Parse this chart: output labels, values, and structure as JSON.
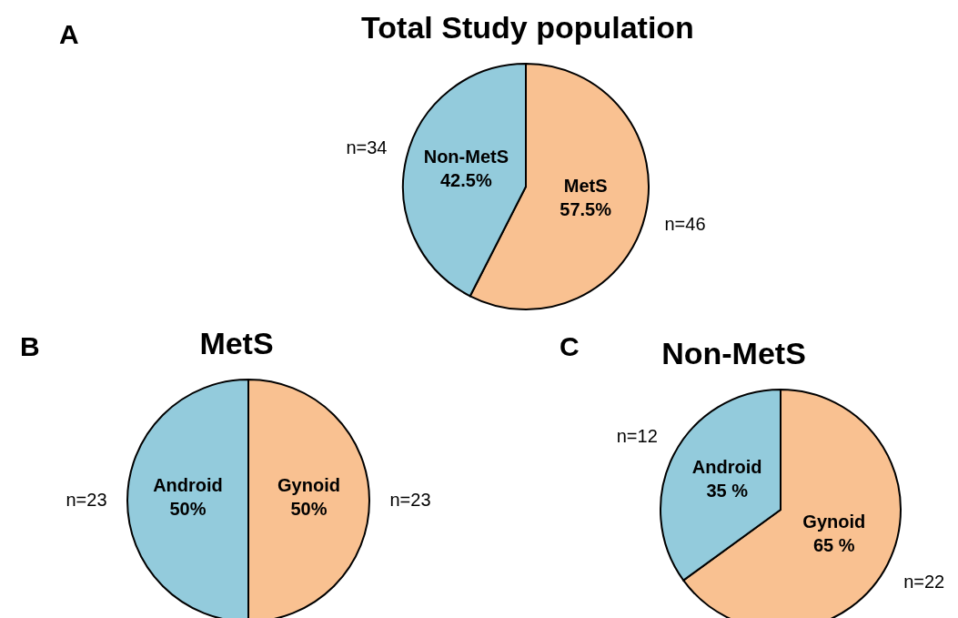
{
  "chart_data": [
    {
      "type": "pie",
      "title": "Total Study population",
      "categories": [
        "MetS",
        "Non-MetS"
      ],
      "values": [
        57.5,
        42.5
      ],
      "colors": [
        "#f9c191",
        "#93cbdc"
      ],
      "value_labels": [
        "57.5%",
        "42.5%"
      ],
      "annotations": [
        "A",
        "n=46",
        "n=34"
      ]
    },
    {
      "type": "pie",
      "title": "MetS",
      "categories": [
        "Gynoid",
        "Android"
      ],
      "values": [
        50,
        50
      ],
      "colors": [
        "#f9c191",
        "#93cbdc"
      ],
      "value_labels": [
        "50%",
        "50%"
      ],
      "annotations": [
        "B",
        "n=23",
        "n=23"
      ]
    },
    {
      "type": "pie",
      "title": "Non-MetS",
      "categories": [
        "Gynoid",
        "Android"
      ],
      "values": [
        65,
        35
      ],
      "colors": [
        "#f9c191",
        "#93cbdc"
      ],
      "value_labels": [
        "65 %",
        "35 %"
      ],
      "annotations": [
        "C",
        "n=22",
        "n=12"
      ]
    }
  ]
}
